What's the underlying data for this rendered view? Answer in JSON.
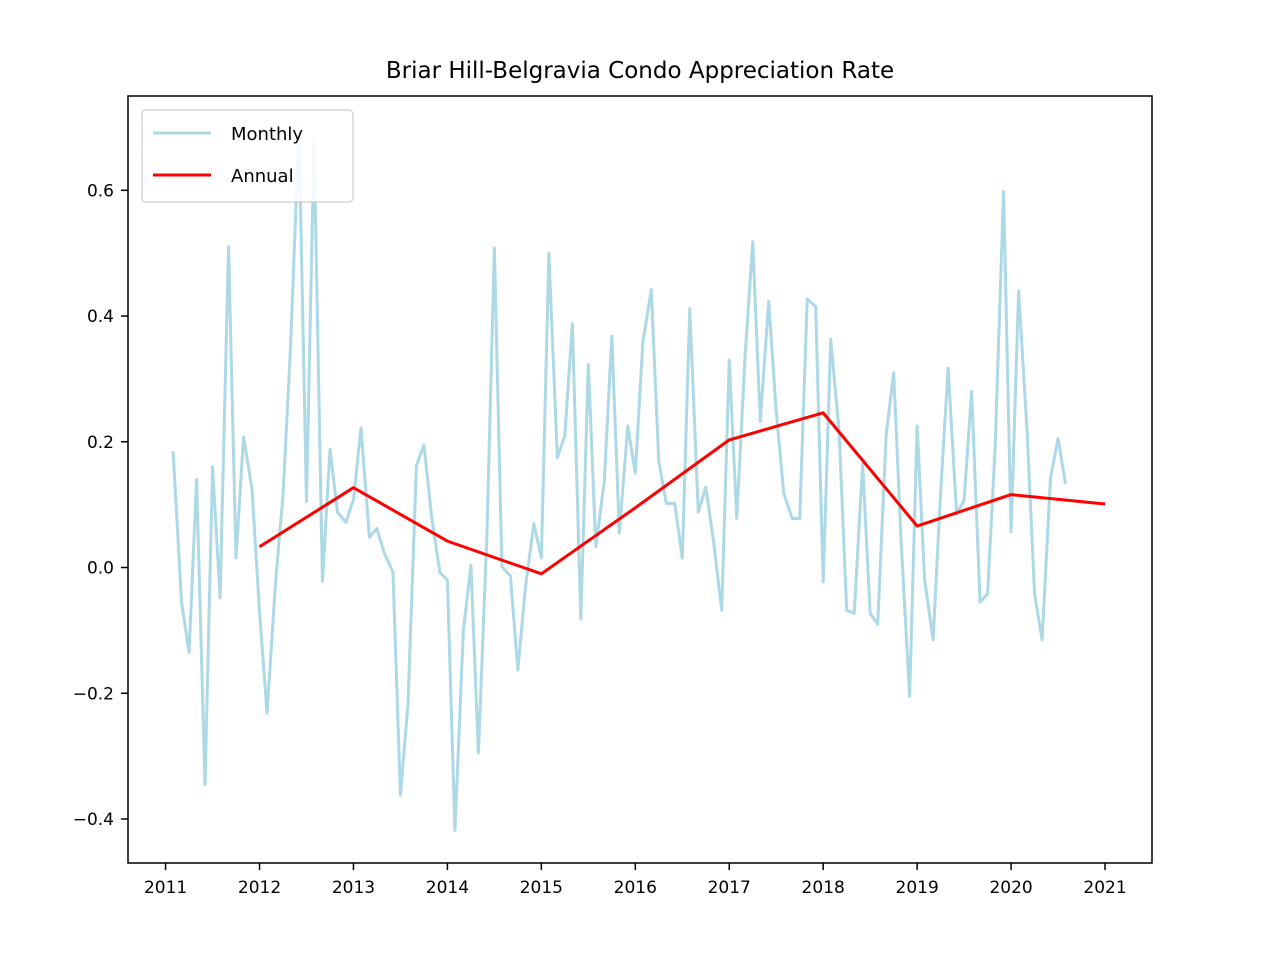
{
  "chart_data": {
    "type": "line",
    "title": "Briar Hill-Belgravia Condo Appreciation Rate",
    "xlabel": "",
    "ylabel": "",
    "xlim": [
      2010.6,
      2021.5
    ],
    "ylim": [
      -0.47,
      0.75
    ],
    "x_ticks": [
      2011,
      2012,
      2013,
      2014,
      2015,
      2016,
      2017,
      2018,
      2019,
      2020,
      2021
    ],
    "x_tick_labels": [
      "2011",
      "2012",
      "2013",
      "2014",
      "2015",
      "2016",
      "2017",
      "2018",
      "2019",
      "2020",
      "2021"
    ],
    "y_ticks": [
      -0.4,
      -0.2,
      0.0,
      0.2,
      0.4,
      0.6
    ],
    "y_tick_labels": [
      "−0.4",
      "−0.2",
      "0.0",
      "0.2",
      "0.4",
      "0.6"
    ],
    "grid": false,
    "legend_position": "upper-left",
    "series": [
      {
        "name": "Monthly",
        "color": "#add8e6",
        "x": [
          2011.08,
          2011.17,
          2011.25,
          2011.33,
          2011.42,
          2011.5,
          2011.58,
          2011.67,
          2011.75,
          2011.83,
          2011.92,
          2012.0,
          2012.08,
          2012.17,
          2012.25,
          2012.33,
          2012.42,
          2012.5,
          2012.58,
          2012.67,
          2012.75,
          2012.83,
          2012.92,
          2013.0,
          2013.08,
          2013.17,
          2013.25,
          2013.33,
          2013.42,
          2013.5,
          2013.58,
          2013.67,
          2013.75,
          2013.83,
          2013.92,
          2014.0,
          2014.08,
          2014.17,
          2014.25,
          2014.33,
          2014.42,
          2014.5,
          2014.58,
          2014.67,
          2014.75,
          2014.83,
          2014.92,
          2015.0,
          2015.08,
          2015.17,
          2015.25,
          2015.33,
          2015.42,
          2015.5,
          2015.58,
          2015.67,
          2015.75,
          2015.83,
          2015.92,
          2016.0,
          2016.08,
          2016.17,
          2016.25,
          2016.33,
          2016.42,
          2016.5,
          2016.58,
          2016.67,
          2016.75,
          2016.83,
          2016.92,
          2017.0,
          2017.08,
          2017.17,
          2017.25,
          2017.33,
          2017.42,
          2017.5,
          2017.58,
          2017.67,
          2017.75,
          2017.83,
          2017.92,
          2018.0,
          2018.08,
          2018.17,
          2018.25,
          2018.33,
          2018.42,
          2018.5,
          2018.58,
          2018.67,
          2018.75,
          2018.83,
          2018.92,
          2019.0,
          2019.08,
          2019.17,
          2019.25,
          2019.33,
          2019.42,
          2019.5,
          2019.58,
          2019.67,
          2019.75,
          2019.83,
          2019.92,
          2020.0,
          2020.08,
          2020.17,
          2020.25,
          2020.33,
          2020.42,
          2020.5,
          2020.58
        ],
        "values": [
          0.185,
          -0.055,
          -0.135,
          0.14,
          -0.345,
          0.16,
          -0.048,
          0.51,
          0.015,
          0.208,
          0.125,
          -0.07,
          -0.232,
          -0.025,
          0.115,
          0.35,
          0.7,
          0.105,
          0.68,
          -0.022,
          0.188,
          0.088,
          0.072,
          0.108,
          0.222,
          0.048,
          0.062,
          0.022,
          -0.007,
          -0.362,
          -0.218,
          0.162,
          0.195,
          0.083,
          -0.008,
          -0.02,
          -0.418,
          -0.1,
          0.004,
          -0.295,
          0.05,
          0.508,
          0.001,
          -0.013,
          -0.163,
          -0.032,
          0.07,
          0.015,
          0.5,
          0.175,
          0.21,
          0.388,
          -0.082,
          0.323,
          0.033,
          0.138,
          0.368,
          0.055,
          0.225,
          0.15,
          0.358,
          0.442,
          0.168,
          0.102,
          0.102,
          0.015,
          0.412,
          0.088,
          0.128,
          0.045,
          -0.068,
          0.33,
          0.078,
          0.34,
          0.518,
          0.232,
          0.423,
          0.248,
          0.118,
          0.078,
          0.078,
          0.427,
          0.415,
          -0.023,
          0.363,
          0.215,
          -0.068,
          -0.073,
          0.165,
          -0.073,
          -0.09,
          0.21,
          0.31,
          0.04,
          -0.205,
          0.225,
          -0.02,
          -0.115,
          0.12,
          0.317,
          0.085,
          0.107,
          0.28,
          -0.055,
          -0.042,
          0.19,
          0.598,
          0.057,
          0.44,
          0.218,
          -0.042,
          -0.115,
          0.143,
          0.205,
          0.133
        ]
      },
      {
        "name": "Annual",
        "color": "#ff0000",
        "x": [
          2012,
          2013,
          2014,
          2015,
          2016,
          2017,
          2018,
          2019,
          2020,
          2021
        ],
        "values": [
          0.033,
          0.127,
          0.042,
          -0.01,
          0.095,
          0.203,
          0.246,
          0.066,
          0.116,
          0.101
        ]
      }
    ]
  }
}
